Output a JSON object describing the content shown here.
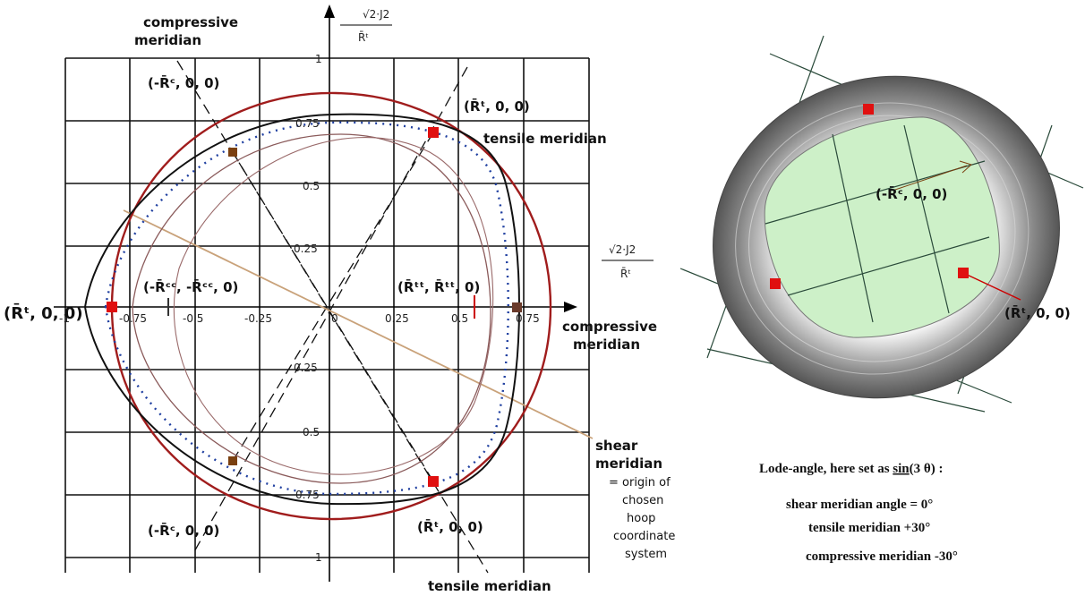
{
  "plot": {
    "axis_labels": {
      "y_num": "√2·J2",
      "y_den": "R̄ᵗ",
      "x_num": "√2·J2",
      "x_den": "R̄ᵗ"
    },
    "x_ticks": [
      "-1",
      "-0.75",
      "-0.5",
      "-0.25",
      "0",
      "0.25",
      "0.5",
      "0.75"
    ],
    "y_ticks": [
      "1",
      "0.75",
      "0.5",
      "0.25",
      "0.25",
      "0.5",
      "0.75",
      "1"
    ],
    "annotations": {
      "compressive_top": [
        "compressive",
        "meridian"
      ],
      "minus_rc_top": "(-R̄ᶜ, 0, 0)",
      "rt_top": "(R̄ᵗ, 0, 0)",
      "tensile_top": "tensile meridian",
      "rt_left": "(R̄ᵗ, 0, 0)",
      "rcc": "(-R̄ᶜᶜ, -R̄ᶜᶜ, 0)",
      "rtt": "(R̄ᵗᵗ, R̄ᵗᵗ, 0)",
      "compressive_right": [
        "compressive",
        "meridian"
      ],
      "shear": [
        "shear",
        "meridian",
        "= origin of",
        "chosen",
        "hoop",
        "coordinate",
        "system"
      ],
      "minus_rc_bottom": "(-R̄ᶜ, 0, 0)",
      "rt_bottom": "(R̄ᵗ, 0, 0)",
      "tensile_bottom": "tensile meridian"
    }
  },
  "surface": {
    "minus_rc": "(-R̄ᶜ, 0, 0)",
    "rt": "(R̄ᵗ, 0, 0)"
  },
  "legend": {
    "title": "Lode-angle, here set as",
    "func": "sin",
    "arg": "(3 θ) :",
    "lines": [
      "shear meridian angle = 0°",
      "tensile meridian +30°",
      "compressive meridian -30°"
    ]
  }
}
